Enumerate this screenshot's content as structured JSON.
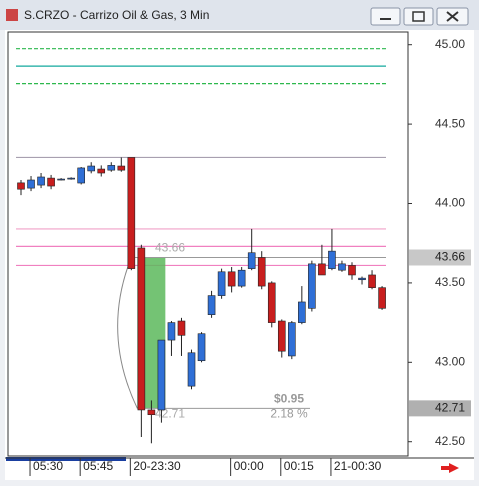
{
  "chart_data": {
    "type": "candlestick",
    "title": "S.CRZO - Carrizo Oil & Gas, 3 Min",
    "categories": [
      null,
      "05:30",
      null,
      null,
      null,
      null,
      "05:45",
      null,
      null,
      null,
      null,
      "20-23:30",
      null,
      null,
      null,
      null,
      null,
      null,
      null,
      null,
      null,
      "00:00",
      null,
      null,
      null,
      null,
      "00:15",
      null,
      null,
      null,
      null,
      "21-00:30",
      null,
      null,
      null,
      null,
      null
    ],
    "open": [
      44.13,
      44.097,
      44.116,
      44.16,
      44.15,
      44.155,
      44.129,
      44.205,
      44.217,
      44.21,
      44.236,
      44.29,
      43.72,
      42.7,
      42.7,
      43.14,
      43.26,
      42.85,
      43.01,
      43.3,
      43.42,
      43.57,
      43.48,
      43.59,
      43.66,
      43.5,
      43.26,
      43.04,
      43.25,
      43.34,
      43.62,
      43.59,
      43.58,
      43.61,
      43.52,
      43.55,
      43.47
    ],
    "high": [
      44.148,
      44.173,
      44.192,
      44.18,
      44.16,
      44.165,
      44.23,
      44.26,
      44.24,
      44.26,
      44.29,
      44.29,
      43.74,
      42.76,
      43.14,
      43.26,
      43.28,
      43.08,
      43.19,
      43.45,
      43.59,
      43.6,
      43.6,
      43.84,
      43.7,
      43.51,
      43.27,
      43.26,
      43.48,
      43.64,
      43.74,
      43.84,
      43.64,
      43.63,
      43.54,
      43.58,
      43.48
    ],
    "low": [
      44.053,
      44.078,
      44.097,
      44.09,
      44.145,
      44.15,
      44.12,
      44.19,
      44.17,
      44.2,
      44.2,
      43.58,
      42.53,
      42.49,
      42.62,
      43.04,
      43.04,
      42.83,
      43.0,
      43.28,
      43.4,
      43.44,
      43.47,
      43.58,
      43.46,
      43.22,
      43.03,
      43.02,
      43.24,
      43.32,
      43.55,
      43.58,
      43.57,
      43.52,
      43.49,
      43.46,
      43.33
    ],
    "close": [
      44.09,
      44.148,
      44.167,
      44.11,
      44.154,
      44.16,
      44.224,
      44.236,
      44.192,
      44.24,
      44.21,
      43.59,
      42.7,
      42.67,
      43.14,
      43.25,
      43.17,
      43.06,
      43.18,
      43.42,
      43.57,
      43.48,
      43.58,
      43.69,
      43.48,
      43.25,
      43.07,
      43.25,
      43.38,
      43.62,
      43.55,
      43.7,
      43.62,
      43.55,
      43.53,
      43.47,
      43.34
    ],
    "up_color": "#2f6fd6",
    "down_color": "#c81e1e",
    "ylim": [
      42.41,
      45.08
    ],
    "yticks": [
      {
        "value": 45,
        "label": "45.00"
      },
      {
        "value": 44.5,
        "label": "44.50"
      },
      {
        "value": 44,
        "label": "44.00"
      },
      {
        "value": 43.5,
        "label": "43.50"
      },
      {
        "value": 43,
        "label": "43.00"
      },
      {
        "value": 42.5,
        "label": "42.50"
      }
    ],
    "hlines": [
      {
        "value": 44.975,
        "color": "#2db84d",
        "dashed": true
      },
      {
        "value": 44.865,
        "color": "#13a89e",
        "dashed": false
      },
      {
        "value": 44.755,
        "color": "#2db84d",
        "dashed": true
      },
      {
        "value": 44.29,
        "color": "#a8a0b0",
        "dashed": false
      },
      {
        "value": 43.84,
        "color": "#f0a0c8",
        "dashed": false
      },
      {
        "value": 43.73,
        "color": "#f080c0",
        "dashed": false
      },
      {
        "value": 43.61,
        "color": "#f080c0",
        "dashed": false
      }
    ],
    "measure": {
      "top": 43.66,
      "bottom": 42.71,
      "change_label": "$0.95",
      "percent_label": "2.18 %",
      "color": "#5cb85c"
    }
  }
}
